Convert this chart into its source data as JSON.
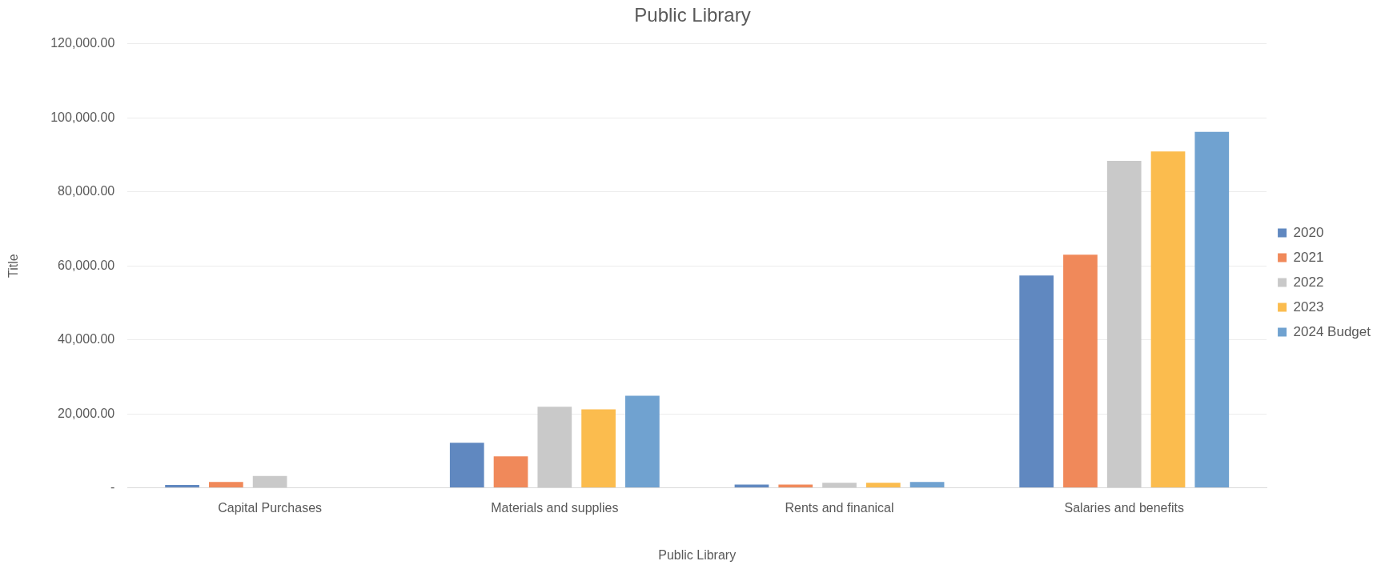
{
  "chart_data": {
    "type": "bar",
    "title": "Public Library",
    "xlabel": "Public Library",
    "ylabel": "Title",
    "categories": [
      "Capital Purchases",
      "Materials and supplies",
      "Rents and finanical",
      "Salaries and benefits"
    ],
    "series": [
      {
        "name": "2020",
        "color": "#6088c0",
        "values": [
          800,
          12200,
          900,
          57400
        ]
      },
      {
        "name": "2021",
        "color": "#f0895a",
        "values": [
          1600,
          8500,
          900,
          63000
        ]
      },
      {
        "name": "2022",
        "color": "#c9c9c9",
        "values": [
          3200,
          21900,
          1400,
          88400
        ]
      },
      {
        "name": "2023",
        "color": "#fbbc4e",
        "values": [
          null,
          21200,
          1400,
          90900
        ]
      },
      {
        "name": "2024 Budget",
        "color": "#70a2d0",
        "values": [
          null,
          24900,
          1600,
          96200
        ]
      }
    ],
    "ylim": [
      0,
      120000
    ],
    "yticks": [
      {
        "value": 0,
        "label": "-"
      },
      {
        "value": 20000,
        "label": "20,000.00"
      },
      {
        "value": 40000,
        "label": "40,000.00"
      },
      {
        "value": 60000,
        "label": "60,000.00"
      },
      {
        "value": 80000,
        "label": "80,000.00"
      },
      {
        "value": 100000,
        "label": "100,000.00"
      },
      {
        "value": 120000,
        "label": "120,000.00"
      }
    ],
    "grid": "y",
    "legend": "right"
  }
}
